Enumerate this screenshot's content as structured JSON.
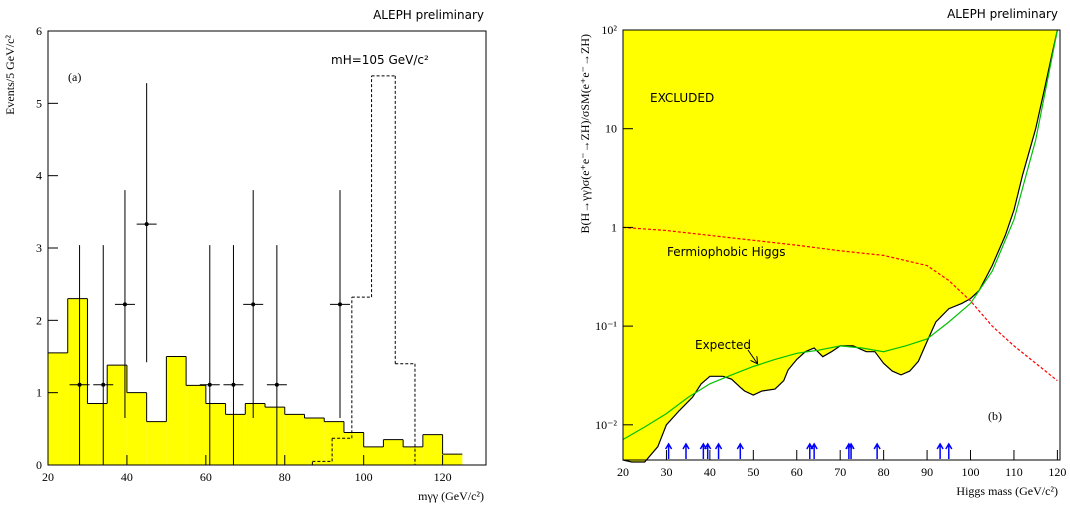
{
  "chart_data": [
    {
      "type": "histogram",
      "title": "ALEPH preliminary",
      "panel_label": "(a)",
      "annotation": "mH=105 GeV/c²",
      "x_label": "mγγ (GeV/c²)",
      "y_label": "Events/5 GeV/c²",
      "bins": [
        20,
        25,
        30,
        35,
        40,
        45,
        50,
        55,
        60,
        65,
        70,
        75,
        80,
        85,
        90,
        95,
        100,
        105,
        110,
        115,
        120,
        125
      ],
      "series": [
        {
          "color": "#ffff00",
          "values": [
            1.55,
            2.3,
            0.85,
            1.38,
            1.0,
            0.6,
            1.5,
            1.1,
            0.85,
            0.7,
            0.85,
            0.8,
            0.7,
            0.65,
            0.6,
            0.45,
            0.25,
            0.35,
            0.25,
            0.42,
            0.15
          ]
        }
      ],
      "signal": {
        "bins": [
          87,
          92,
          97,
          102,
          108,
          113
        ],
        "values": [
          0.05,
          0.37,
          2.32,
          5.38,
          1.4
        ],
        "color": "#000000"
      },
      "points": {
        "x": [
          28,
          34,
          39.5,
          45,
          61,
          67,
          72,
          78,
          94
        ],
        "y": [
          1.11,
          1.11,
          2.22,
          3.33,
          1.11,
          1.11,
          2.22,
          1.11,
          2.22
        ],
        "y_low": [
          0,
          0,
          0.65,
          1.42,
          0,
          0,
          0.65,
          0,
          0.65
        ],
        "y_high": [
          3.04,
          3.04,
          3.8,
          5.28,
          3.04,
          3.04,
          3.8,
          3.04,
          3.8
        ],
        "color": "#000000"
      },
      "xlim": [
        20,
        131
      ],
      "ylim": [
        0,
        6
      ],
      "xticks": [
        20,
        40,
        60,
        80,
        100,
        120
      ],
      "yticks": [
        0,
        1,
        2,
        3,
        4,
        5,
        6
      ]
    },
    {
      "type": "line",
      "title": "ALEPH preliminary",
      "panel_label": "(b)",
      "annotation": "EXCLUDED",
      "x_label": "Higgs mass (GeV/c²)",
      "y_label": "B(H→γγ)σ(e⁺e⁻→ZH)/σSM(e⁺e⁻→ZH)",
      "log_y": true,
      "series": [
        {
          "color": "#000000",
          "fill": "#ffff00",
          "x": [
            20,
            22,
            25,
            28,
            30,
            33,
            36,
            38,
            40,
            43,
            45,
            47,
            48,
            50,
            52,
            55,
            57,
            58,
            60,
            62,
            64,
            66,
            68,
            70,
            73,
            76,
            78,
            80,
            82,
            84,
            86,
            88,
            90,
            92,
            95,
            98,
            100,
            102,
            105,
            108,
            110,
            112,
            115,
            117,
            119,
            120
          ],
          "values": [
            0.0044,
            0.0042,
            0.0042,
            0.006,
            0.01,
            0.014,
            0.019,
            0.026,
            0.031,
            0.031,
            0.029,
            0.024,
            0.022,
            0.02,
            0.022,
            0.023,
            0.028,
            0.036,
            0.046,
            0.055,
            0.06,
            0.049,
            0.055,
            0.063,
            0.063,
            0.055,
            0.055,
            0.042,
            0.035,
            0.032,
            0.035,
            0.044,
            0.07,
            0.11,
            0.15,
            0.17,
            0.19,
            0.23,
            0.41,
            0.83,
            1.5,
            3.4,
            10,
            25,
            63,
            100
          ]
        },
        {
          "name": "Expected",
          "color": "#00c000",
          "x": [
            20,
            25,
            30,
            35,
            40,
            45,
            50,
            55,
            60,
            65,
            70,
            75,
            80,
            85,
            90,
            95,
            100,
            105,
            110,
            115,
            120
          ],
          "values": [
            0.0071,
            0.0095,
            0.013,
            0.019,
            0.026,
            0.032,
            0.039,
            0.046,
            0.053,
            0.057,
            0.063,
            0.06,
            0.055,
            0.063,
            0.074,
            0.11,
            0.17,
            0.36,
            1.2,
            7.7,
            100
          ]
        },
        {
          "name": "Fermiophobic Higgs",
          "color": "#ff0000",
          "dashed": true,
          "x": [
            20,
            30,
            40,
            50,
            60,
            70,
            80,
            90,
            95,
            100,
            105,
            110,
            115,
            120
          ],
          "values": [
            1.0,
            0.93,
            0.83,
            0.74,
            0.66,
            0.58,
            0.52,
            0.41,
            0.29,
            0.18,
            0.1,
            0.063,
            0.042,
            0.028
          ]
        }
      ],
      "candidates": {
        "x": [
          30.5,
          34.5,
          38.5,
          39.5,
          42,
          47,
          63,
          64,
          72,
          72.5,
          78.5,
          93,
          95
        ],
        "color": "#0000ff"
      },
      "xlim": [
        20,
        120.6
      ],
      "ylim": [
        0.0044,
        100
      ],
      "xticks": [
        20,
        30,
        40,
        50,
        60,
        70,
        80,
        90,
        100,
        110,
        120
      ],
      "yticks": [
        {
          "value": 0.01,
          "label": "10⁻²"
        },
        {
          "value": 0.1,
          "label": "10⁻¹"
        },
        1,
        10,
        {
          "value": 100,
          "label": "10²"
        }
      ]
    }
  ]
}
